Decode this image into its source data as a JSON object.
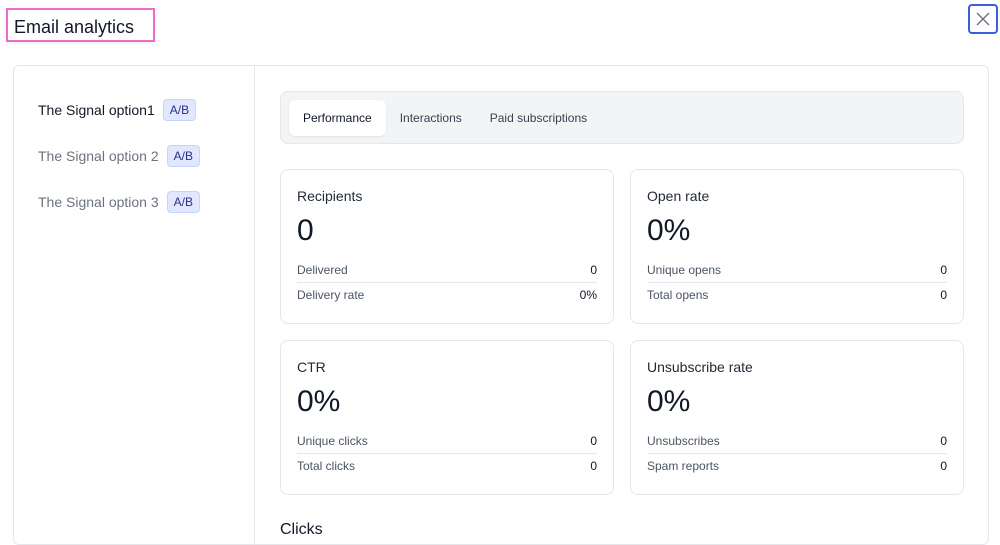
{
  "title": "Email analytics",
  "close_icon": "close-icon",
  "colors": {
    "focus": "#3b5fd9",
    "title_highlight": "#f06bc8",
    "badge_bg": "#e0e7ff"
  },
  "options": [
    {
      "label": "The Signal option1",
      "badge": "A/B",
      "active": true
    },
    {
      "label": "The Signal option 2",
      "badge": "A/B",
      "active": false
    },
    {
      "label": "The Signal option 3",
      "badge": "A/B",
      "active": false
    }
  ],
  "tabs": [
    {
      "label": "Performance",
      "active": true
    },
    {
      "label": "Interactions"
    },
    {
      "label": "Paid subscriptions"
    }
  ],
  "cards": [
    {
      "title": "Recipients",
      "value": "0",
      "rows": [
        {
          "label": "Delivered",
          "value": "0"
        },
        {
          "label": "Delivery rate",
          "value": "0%"
        }
      ]
    },
    {
      "title": "Open rate",
      "value": "0%",
      "rows": [
        {
          "label": "Unique opens",
          "value": "0"
        },
        {
          "label": "Total opens",
          "value": "0"
        }
      ]
    },
    {
      "title": "CTR",
      "value": "0%",
      "rows": [
        {
          "label": "Unique clicks",
          "value": "0"
        },
        {
          "label": "Total clicks",
          "value": "0"
        }
      ]
    },
    {
      "title": "Unsubscribe rate",
      "value": "0%",
      "rows": [
        {
          "label": "Unsubscribes",
          "value": "0"
        },
        {
          "label": "Spam reports",
          "value": "0"
        }
      ]
    }
  ],
  "section_heading": "Clicks"
}
